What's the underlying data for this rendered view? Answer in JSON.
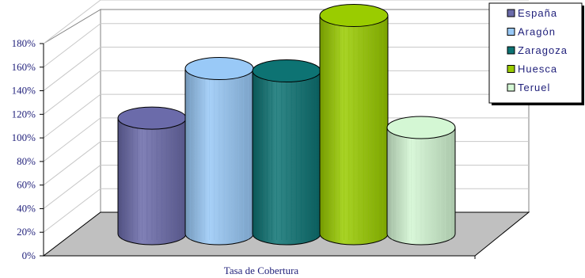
{
  "chart_data": {
    "type": "bar",
    "style": "3d-cylinder",
    "categories": [
      "Tasa de Cobertura"
    ],
    "series": [
      {
        "name": "España",
        "values": [
          98
        ],
        "color": "#6b6baa"
      },
      {
        "name": "Aragón",
        "values": [
          140
        ],
        "color": "#99c9f7"
      },
      {
        "name": "Zaragoza",
        "values": [
          138
        ],
        "color": "#0d7373"
      },
      {
        "name": "Huesca",
        "values": [
          185
        ],
        "color": "#9acc00"
      },
      {
        "name": "Teruel",
        "values": [
          90
        ],
        "color": "#d4f7d4"
      }
    ],
    "y_ticks": [
      "0%",
      "20%",
      "40%",
      "60%",
      "80%",
      "100%",
      "120%",
      "140%",
      "160%",
      "180%"
    ],
    "ylim": [
      0,
      180
    ],
    "y_unit": "%",
    "grid": true,
    "legend_position": "top-right",
    "floor_color": "#c0c0c0"
  }
}
